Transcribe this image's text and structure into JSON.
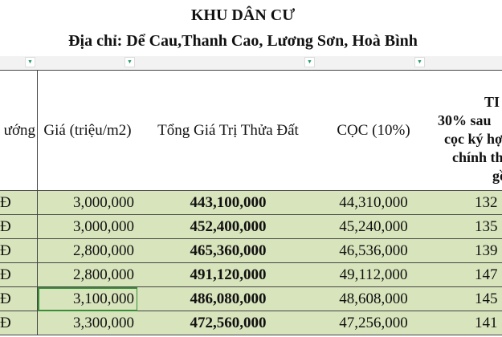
{
  "title": "KHU DÂN CƯ",
  "address": "Địa chỉ: Dể Cau,Thanh Cao, Lương Sơn, Hoà Bình",
  "filter_icon": "dropdown-triangle-icon",
  "headers": [
    "ướng",
    "Giá (triệu/m2)",
    "Tổng Giá Trị Thửa Đất",
    "CỌC  (10%)"
  ],
  "last_header_lines": [
    "TI",
    "30% sau",
    "cọc ký hợ",
    "chính thu",
    "gồ"
  ],
  "rows": [
    {
      "c0": "Đ",
      "price": "3,000,000",
      "total": "443,100,000",
      "deposit": "44,310,000",
      "next": "132"
    },
    {
      "c0": "Đ",
      "price": "3,000,000",
      "total": "452,400,000",
      "deposit": "45,240,000",
      "next": "135"
    },
    {
      "c0": "Đ",
      "price": "2,800,000",
      "total": "465,360,000",
      "deposit": "46,536,000",
      "next": "139"
    },
    {
      "c0": "Đ",
      "price": "2,800,000",
      "total": "491,120,000",
      "deposit": "49,112,000",
      "next": "147"
    },
    {
      "c0": "Đ",
      "price": "3,100,000",
      "total": "486,080,000",
      "deposit": "48,608,000",
      "next": "145"
    },
    {
      "c0": "Đ",
      "price": "3,300,000",
      "total": "472,560,000",
      "deposit": "47,256,000",
      "next": "141"
    }
  ],
  "colors": {
    "row_fill": "#d8e4bc",
    "selection": "#3a8e3a"
  }
}
